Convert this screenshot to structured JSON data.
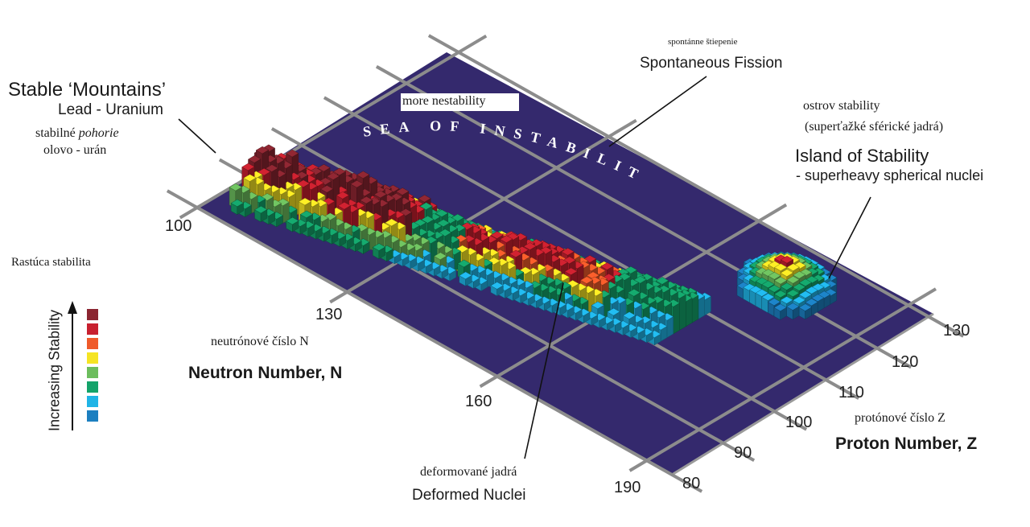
{
  "labels": {
    "stable_title": "Stable ‘Mountains’",
    "stable_sub": "Lead - Uranium",
    "stable_sk_a": "stabilné ",
    "stable_sk_b": "pohorie",
    "stable_sk_2": "olovo - urán",
    "more_instability": "more nestability",
    "sea": "SEA OF INSTABILITY",
    "fission_sk": "spontánne štiepenie",
    "fission": "Spontaneous Fission",
    "island_sk_1": "ostrov stability",
    "island_sk_2": "(superťažké sférické jadrá)",
    "island": "Island of Stability",
    "island_sub": "- superheavy spherical nuclei",
    "increasing_sk": "Rastúca stabilita",
    "increasing": "Increasing Stability",
    "neutron_sk": "neutrónové číslo N",
    "neutron": "Neutron Number, N",
    "proton_sk": "protónové číslo Z",
    "proton": "Proton Number, Z",
    "deformed_sk": "deformované jadrá",
    "deformed": "Deformed Nuclei"
  },
  "neutron_ticks": [
    "100",
    "130",
    "160",
    "190"
  ],
  "proton_ticks": [
    "80",
    "90",
    "100",
    "110",
    "120",
    "130"
  ],
  "legend_colors": [
    "#8b2531",
    "#c8202f",
    "#ef5a2a",
    "#f5e423",
    "#6cbd5d",
    "#14a36a",
    "#20b4e6",
    "#1c7fc0"
  ],
  "colors": {
    "sea": "#34296d",
    "grid": "#8a8a8a"
  }
}
